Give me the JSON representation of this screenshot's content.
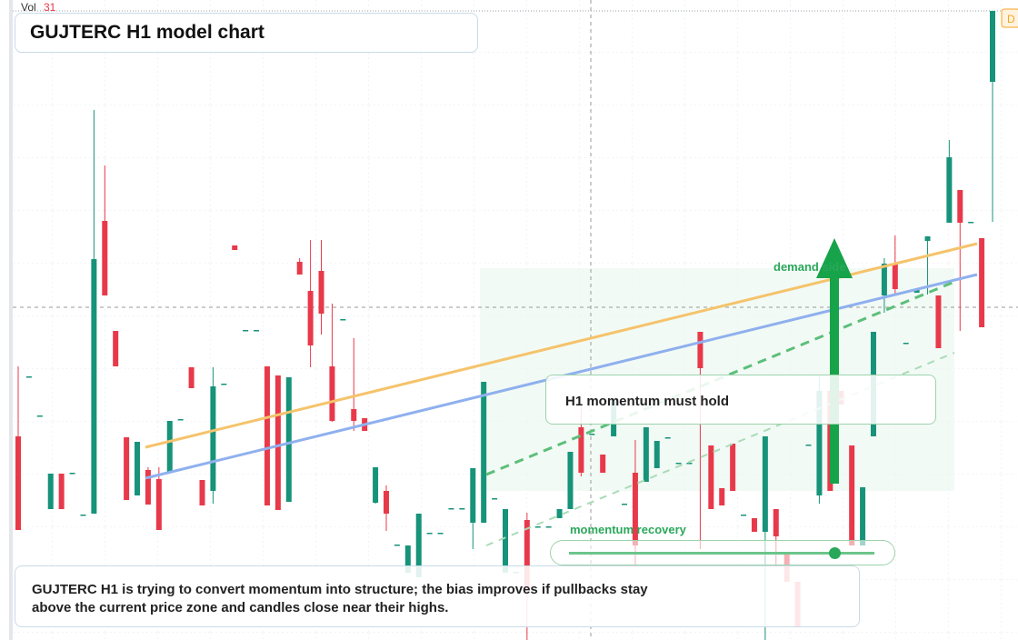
{
  "chart_data": {
    "type": "candlestick",
    "title": "GUJTERC H1 model chart",
    "volume_label": "Vol",
    "volume": 31,
    "badge": "D",
    "annotations": {
      "zone": "demand side",
      "callout": "H1 momentum must hold",
      "slider": "momentum recovery"
    },
    "description": "GUJTERC H1 is trying to convert momentum into structure; the bias improves if pullbacks stay above the current price zone and candles close near their highs.",
    "up_color": "#17937a",
    "down_color": "#e8394a",
    "ylim": [
      0,
      704
    ],
    "open": [
      224,
      289,
      246,
      144,
      183,
      183,
      137,
      139,
      461,
      340,
      223,
      159,
      187,
      177,
      184,
      242,
      300,
      176,
      164,
      281,
      434,
      340,
      340,
      301,
      291,
      152,
      416,
      384,
      406,
      301,
      352,
      254,
      244,
      151,
      164,
      104,
      74,
      69,
      117,
      117,
      144,
      144,
      129,
      129,
      155,
      74,
      74,
      132,
      124,
      124,
      134,
      144,
      234,
      226,
      204,
      224,
      149,
      184,
      174,
      189,
      222,
      194,
      194,
      339,
      214,
      167,
      216,
      137,
      134,
      119,
      144,
      94,
      64,
      214,
      159,
      274,
      274,
      214,
      104,
      224,
      379,
      414,
      326,
      382,
      439,
      379,
      459,
      495,
      459,
      442,
      614
    ],
    "close": [
      121,
      290,
      247,
      183,
      144,
      184,
      138,
      419,
      379,
      301,
      154,
      218,
      149,
      121,
      241,
      243,
      277,
      148,
      279,
      282,
      429,
      341,
      341,
      148,
      143,
      289,
      402,
      324,
      359,
      241,
      353,
      241,
      230,
      190,
      139,
      105,
      104,
      139,
      118,
      118,
      145,
      145,
      189,
      284,
      156,
      144,
      75,
      54,
      125,
      125,
      144,
      207,
      184,
      227,
      184,
      264,
      150,
      104,
      234,
      219,
      223,
      195,
      195,
      299,
      144,
      148,
      164,
      138,
      119,
      224,
      114,
      64,
      14,
      215,
      274,
      164,
      259,
      104,
      168,
      339,
      414,
      386,
      327,
      386,
      444,
      321,
      531,
      459,
      460,
      344,
      692
    ],
    "high": [
      301,
      290,
      247,
      183,
      183,
      184,
      138,
      583,
      522,
      340,
      223,
      218,
      190,
      190,
      241,
      243,
      300,
      176,
      300,
      282,
      434,
      341,
      341,
      301,
      291,
      289,
      420,
      440,
      440,
      370,
      353,
      332,
      244,
      190,
      170,
      105,
      104,
      139,
      118,
      118,
      145,
      145,
      189,
      284,
      156,
      144,
      75,
      140,
      125,
      125,
      144,
      207,
      260,
      227,
      204,
      264,
      150,
      220,
      234,
      219,
      223,
      195,
      195,
      339,
      214,
      167,
      216,
      138,
      134,
      224,
      144,
      94,
      64,
      215,
      290,
      274,
      274,
      214,
      168,
      339,
      420,
      445,
      327,
      386,
      444,
      379,
      550,
      495,
      460,
      442,
      692
    ],
    "low": [
      121,
      289,
      246,
      144,
      144,
      183,
      137,
      139,
      379,
      301,
      154,
      159,
      149,
      121,
      184,
      242,
      277,
      148,
      150,
      281,
      429,
      340,
      340,
      148,
      143,
      152,
      402,
      300,
      336,
      240,
      352,
      230,
      230,
      150,
      120,
      104,
      74,
      69,
      117,
      117,
      144,
      144,
      100,
      129,
      155,
      74,
      74,
      0,
      124,
      124,
      134,
      144,
      180,
      226,
      184,
      224,
      149,
      80,
      174,
      189,
      222,
      194,
      194,
      100,
      144,
      148,
      164,
      137,
      119,
      0,
      80,
      64,
      14,
      214,
      150,
      164,
      259,
      104,
      104,
      224,
      360,
      380,
      326,
      382,
      380,
      321,
      459,
      340,
      459,
      344,
      460
    ]
  }
}
